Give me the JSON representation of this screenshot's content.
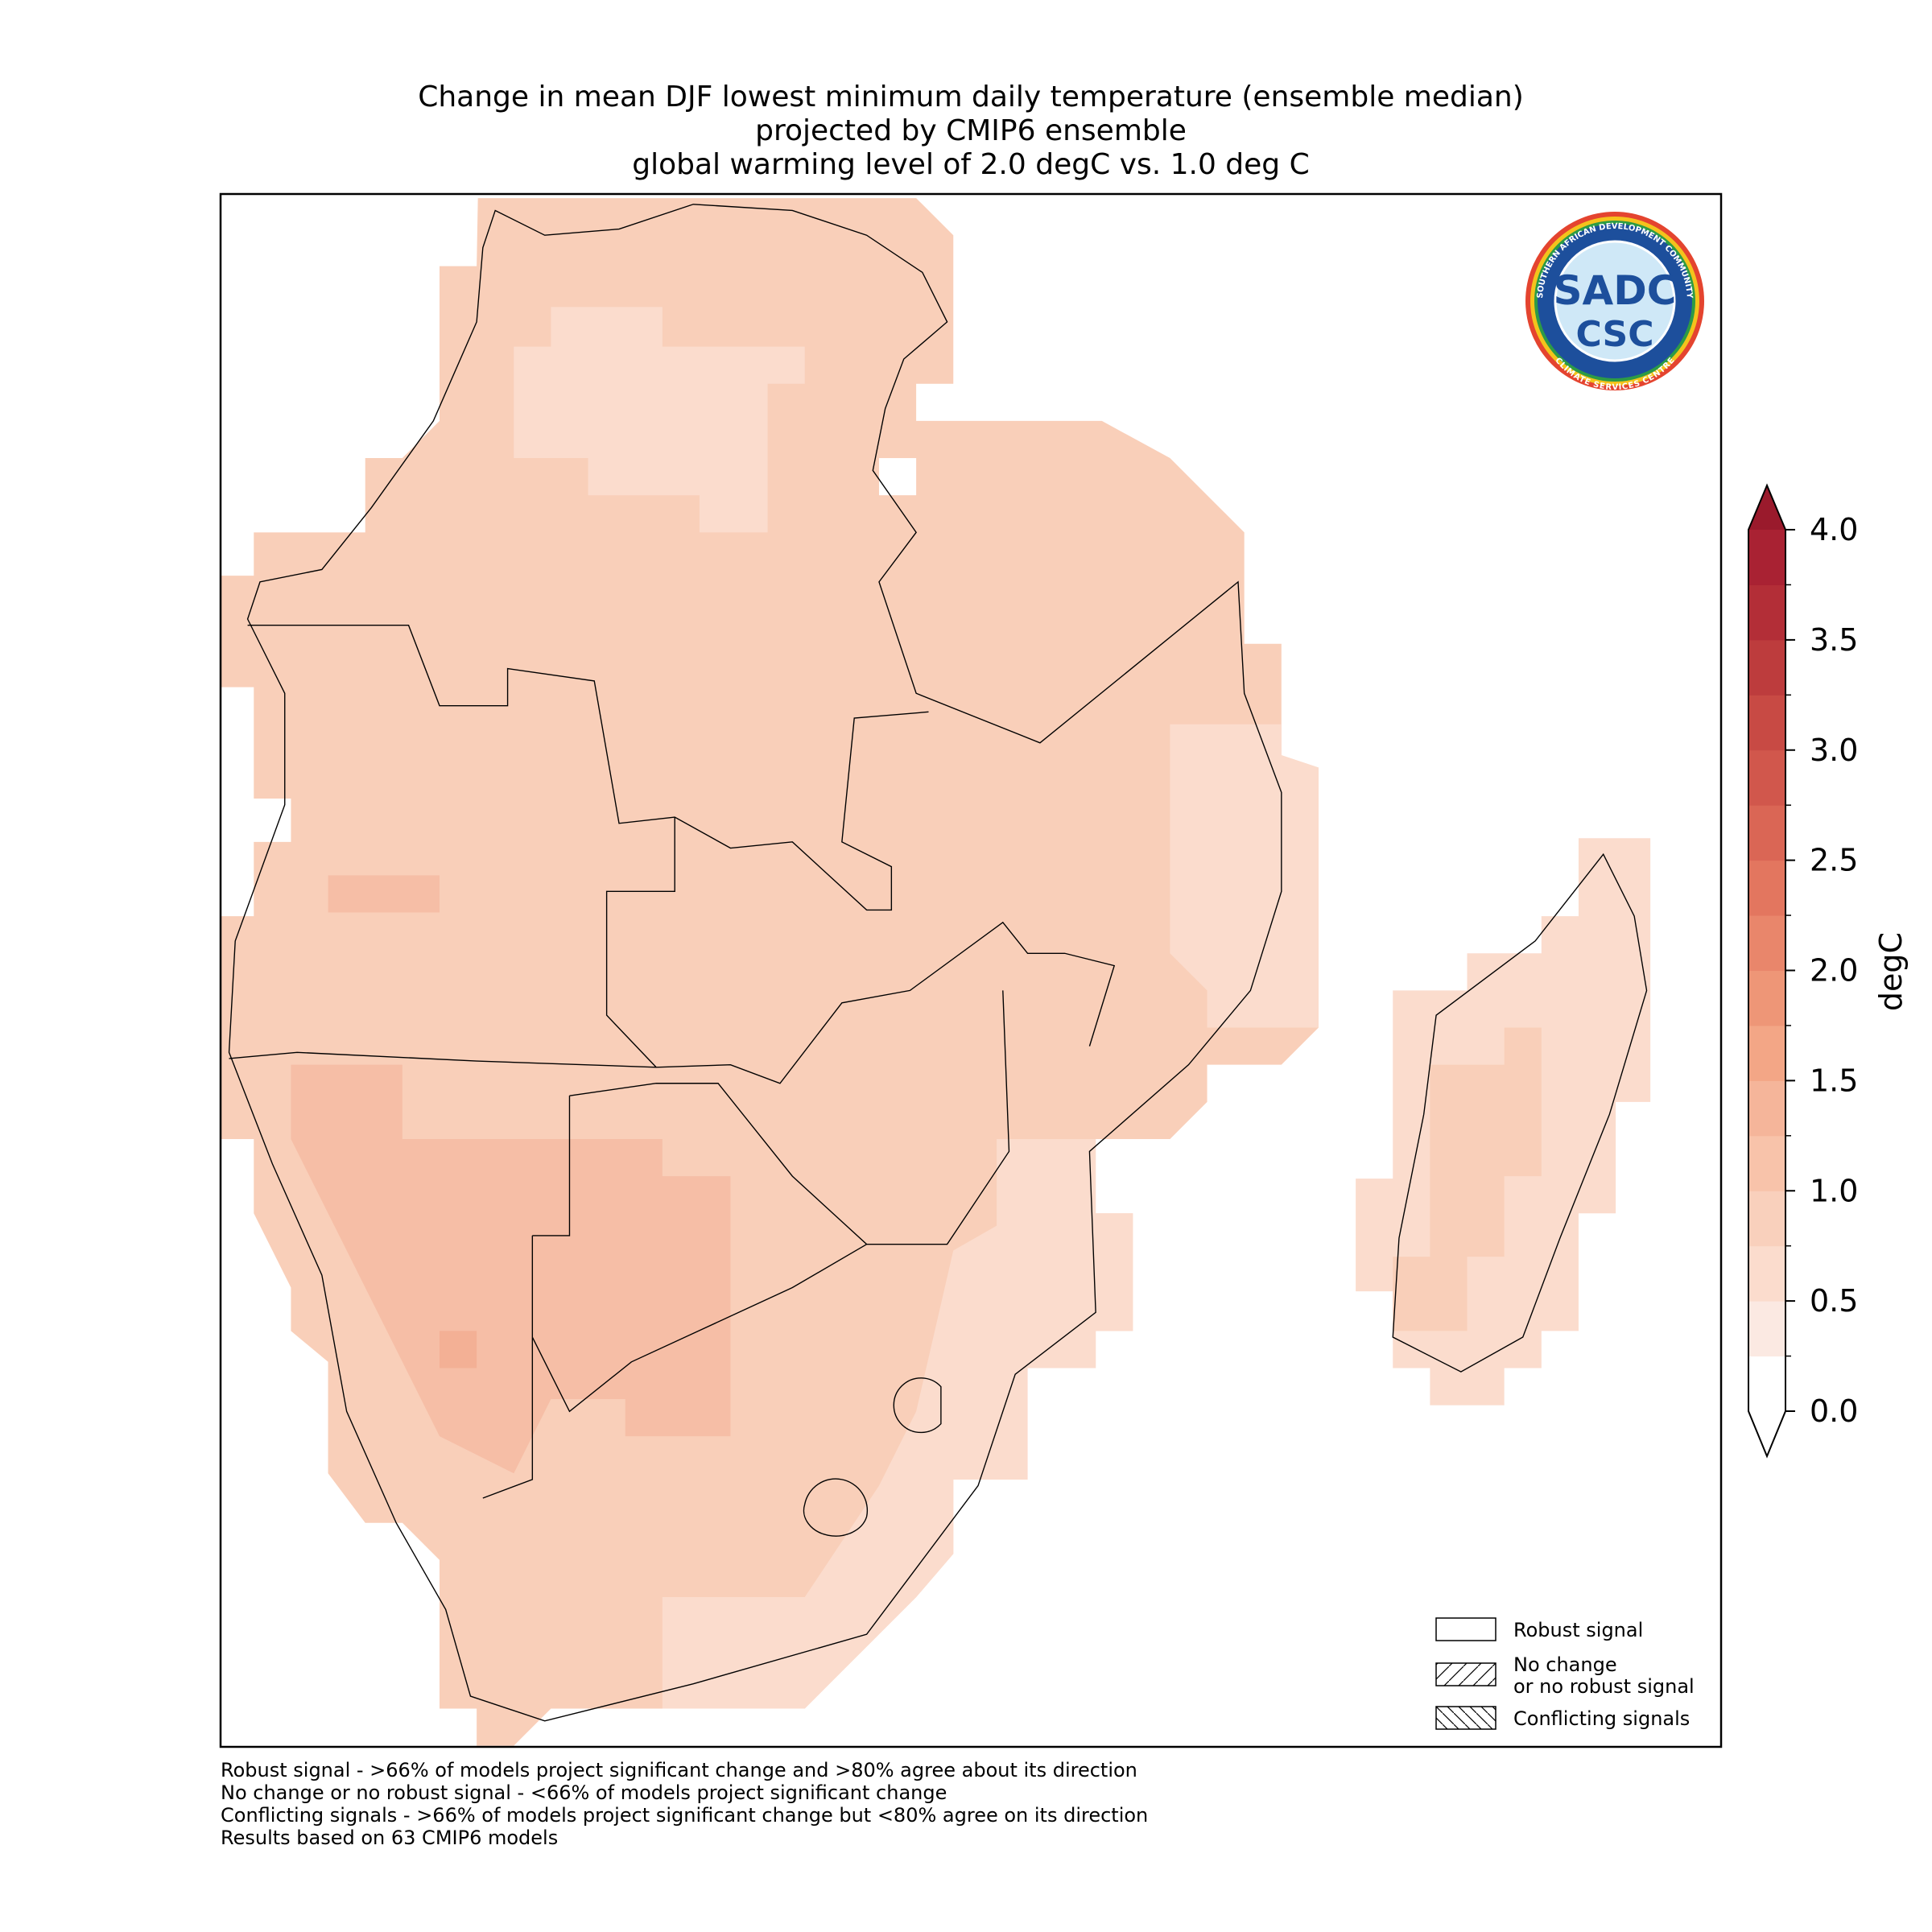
{
  "title": [
    "Change in mean DJF lowest minimum daily temperature (ensemble median)",
    "projected by CMIP6 ensemble",
    "global warming level of 2.0 degC vs. 1.0 deg C"
  ],
  "colorbar": {
    "label": "degC",
    "lim": [
      0,
      4
    ],
    "ticks": [
      {
        "value": 0,
        "label": "0.0"
      },
      {
        "value": 0.5,
        "label": "0.5"
      },
      {
        "value": 1,
        "label": "1.0"
      },
      {
        "value": 1.5,
        "label": "1.5"
      },
      {
        "value": 2,
        "label": "2.0"
      },
      {
        "value": 2.5,
        "label": "2.5"
      },
      {
        "value": 3,
        "label": "3.0"
      },
      {
        "value": 3.5,
        "label": "3.5"
      },
      {
        "value": 4,
        "label": "4.0"
      }
    ],
    "colors": [
      "#ffffff",
      "#fbe9e2",
      "#fbdccd",
      "#f9d0bc",
      "#f8c3aa",
      "#f5b59a",
      "#f3a686",
      "#ee9677",
      "#e9866b",
      "#e3765f",
      "#da6655",
      "#d1574c",
      "#c84a44",
      "#bd3c3d",
      "#b32e37",
      "#a92233"
    ],
    "under_color": "#ffffff",
    "over_color": "#9a1a2c"
  },
  "legend": [
    "Robust signal",
    "No change\nor no robust signal",
    "Conflicting signals"
  ],
  "footnotes": [
    "Robust signal - >66% of models project significant change and >80% agree about its direction",
    "No change or no robust signal - <66% of models project significant change",
    "Conflicting signals - >66% of models project significant change but <80% agree on its direction",
    "Results based on 63 CMIP6 models"
  ],
  "logo": {
    "top": "SADC",
    "bottom": "CSC",
    "ring_top": "SOUTHERN AFRICAN DEVELOPMENT COMMUNITY",
    "ring_bottom": "CLIMATE SERVICES CENTRE"
  }
}
